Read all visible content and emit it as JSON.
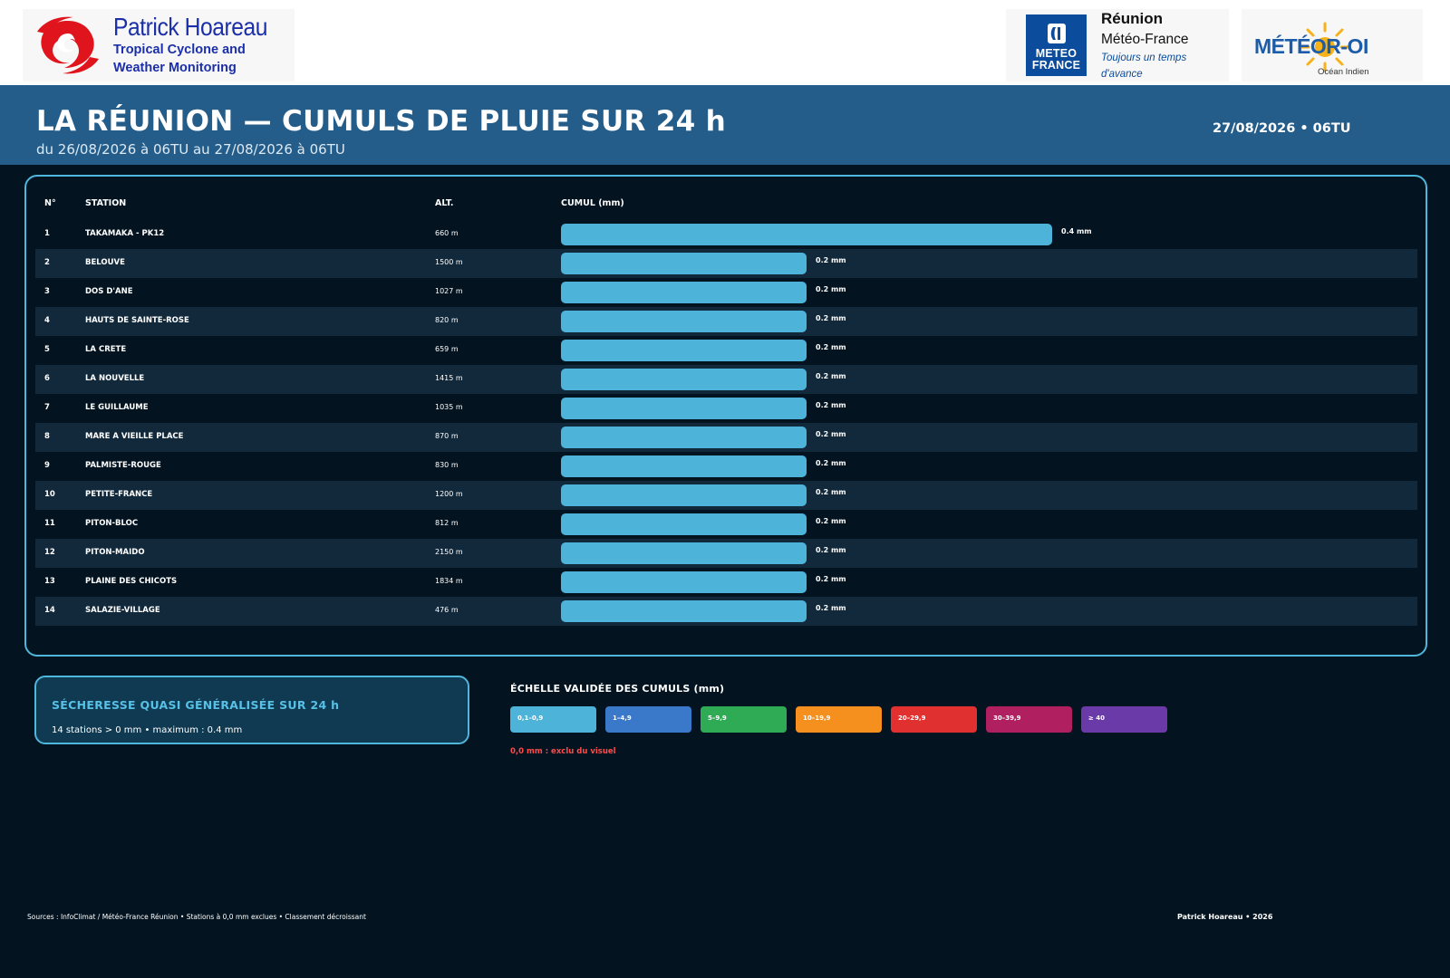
{
  "logos": {
    "hoareau": {
      "name": "Patrick Hoareau",
      "tagline_1": "Tropical Cyclone and",
      "tagline_2": "Weather Monitoring",
      "color": "#1b2fa8",
      "accent": "#e0141c"
    },
    "meteo_france": {
      "box_line_1": "METEO",
      "box_line_2": "FRANCE",
      "region": "Réunion",
      "org": "Météo-France",
      "slogan": "Toujours un temps d'avance",
      "color": "#0b4c9c"
    },
    "meteor_oi": {
      "name": "MÉTÉOR-OI",
      "sub": "Océan Indien",
      "color": "#1d5ca8",
      "sun_color": "#f7b21b"
    }
  },
  "header": {
    "title": "LA RÉUNION — CUMULS DE PLUIE SUR 24 h",
    "subtitle": "du 26/08/2026 à 06TU au 27/08/2026 à 06TU",
    "date_badge": "27/08/2026 • 06TU",
    "band_color": "#245d8a"
  },
  "table": {
    "col_num": "N°",
    "col_station": "STATION",
    "col_alt": "ALT.",
    "col_cumul": "CUMUL (mm)"
  },
  "chart_data": {
    "type": "bar",
    "orientation": "horizontal",
    "unit": "mm",
    "xlim": [
      0,
      0.4
    ],
    "bar_color": "#4db3d9",
    "rows": [
      {
        "rank": "1",
        "station": "TAKAMAKA - PK12",
        "alt": "660 m",
        "value": 0.4,
        "label": "0.4 mm"
      },
      {
        "rank": "2",
        "station": "BELOUVE",
        "alt": "1500 m",
        "value": 0.2,
        "label": "0.2 mm"
      },
      {
        "rank": "3",
        "station": "DOS D'ANE",
        "alt": "1027 m",
        "value": 0.2,
        "label": "0.2 mm"
      },
      {
        "rank": "4",
        "station": "HAUTS DE SAINTE-ROSE",
        "alt": "820 m",
        "value": 0.2,
        "label": "0.2 mm"
      },
      {
        "rank": "5",
        "station": "LA CRETE",
        "alt": "659 m",
        "value": 0.2,
        "label": "0.2 mm"
      },
      {
        "rank": "6",
        "station": "LA NOUVELLE",
        "alt": "1415 m",
        "value": 0.2,
        "label": "0.2 mm"
      },
      {
        "rank": "7",
        "station": "LE GUILLAUME",
        "alt": "1035 m",
        "value": 0.2,
        "label": "0.2 mm"
      },
      {
        "rank": "8",
        "station": "MARE A VIEILLE PLACE",
        "alt": "870 m",
        "value": 0.2,
        "label": "0.2 mm"
      },
      {
        "rank": "9",
        "station": "PALMISTE-ROUGE",
        "alt": "830 m",
        "value": 0.2,
        "label": "0.2 mm"
      },
      {
        "rank": "10",
        "station": "PETITE-FRANCE",
        "alt": "1200 m",
        "value": 0.2,
        "label": "0.2 mm"
      },
      {
        "rank": "11",
        "station": "PITON-BLOC",
        "alt": "812 m",
        "value": 0.2,
        "label": "0.2 mm"
      },
      {
        "rank": "12",
        "station": "PITON-MAIDO",
        "alt": "2150 m",
        "value": 0.2,
        "label": "0.2 mm"
      },
      {
        "rank": "13",
        "station": "PLAINE DES CHICOTS",
        "alt": "1834 m",
        "value": 0.2,
        "label": "0.2 mm"
      },
      {
        "rank": "14",
        "station": "SALAZIE-VILLAGE",
        "alt": "476 m",
        "value": 0.2,
        "label": "0.2 mm"
      }
    ]
  },
  "summary": {
    "title": "SÉCHERESSE QUASI GÉNÉRALISÉE SUR 24 h",
    "text": "14 stations > 0 mm  •  maximum : 0.4 mm"
  },
  "scale": {
    "title": "ÉCHELLE VALIDÉE DES CUMULS (mm)",
    "items": [
      {
        "label": "0,1–0,9",
        "color": "#4db3d9"
      },
      {
        "label": "1–4,9",
        "color": "#3a78c9"
      },
      {
        "label": "5–9,9",
        "color": "#2faa55"
      },
      {
        "label": "10–19,9",
        "color": "#f5901e"
      },
      {
        "label": "20–29,9",
        "color": "#e03030"
      },
      {
        "label": "30–39,9",
        "color": "#b02060"
      },
      {
        "label": "≥ 40",
        "color": "#6a3aa8"
      }
    ],
    "note": "0,0 mm : exclu du visuel",
    "note_color": "#ff4a4a"
  },
  "footer": {
    "sources": "Sources : InfoClimat / Météo-France Réunion • Stations à 0,0 mm exclues • Classement décroissant",
    "credit": "Patrick Hoareau • 2026"
  }
}
